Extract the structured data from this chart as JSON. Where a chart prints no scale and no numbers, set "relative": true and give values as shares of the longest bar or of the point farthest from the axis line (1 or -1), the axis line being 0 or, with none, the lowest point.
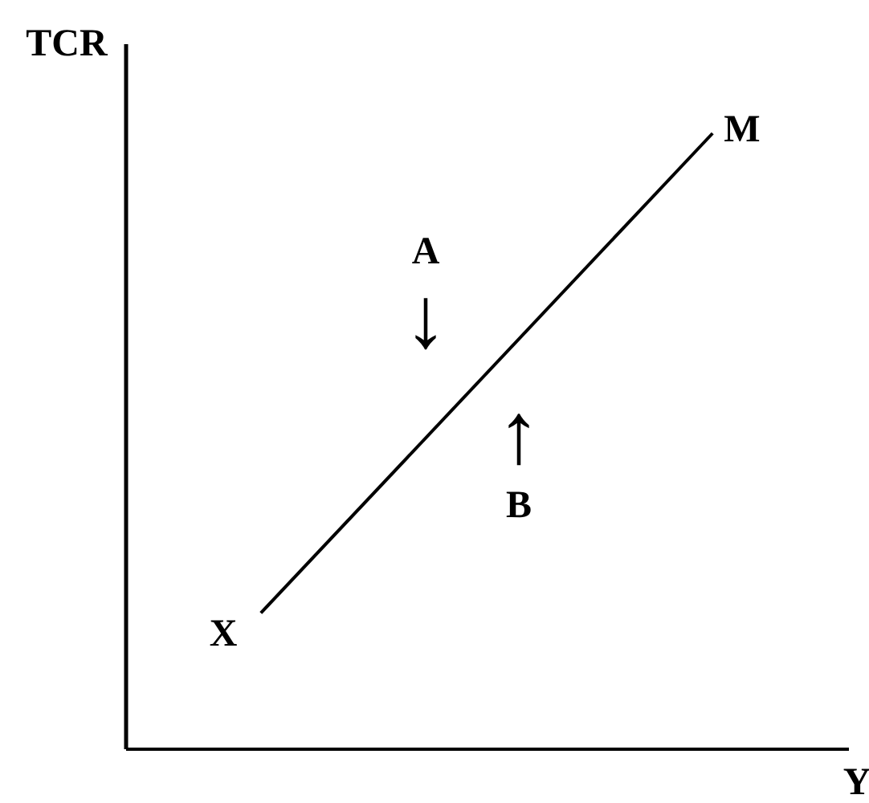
{
  "chart_data": {
    "type": "line",
    "xlabel": "Y",
    "ylabel": "TCR",
    "categories": [
      null,
      null
    ],
    "relative": true,
    "series": [
      {
        "color": "#000000",
        "values": [
          0.22,
          1
        ]
      }
    ],
    "annotations": [
      "A",
      "↓",
      "↑",
      "B",
      "X",
      "M"
    ],
    "grid": false,
    "legend": false,
    "line_style": "solid"
  }
}
